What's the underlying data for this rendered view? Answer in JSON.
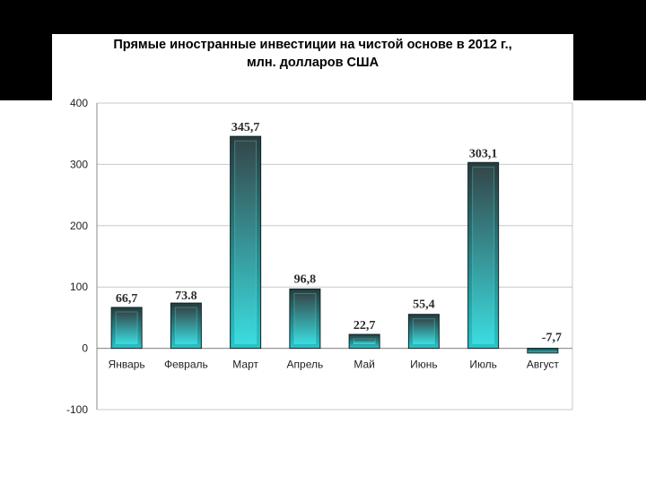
{
  "chart_data": {
    "type": "bar",
    "title": "Прямые иностранные инвестиции на чистой основе в 2012 г.,",
    "subtitle": "млн. долларов США",
    "xlabel": "",
    "ylabel": "",
    "ylim": [
      -100,
      400
    ],
    "yticks": [
      "400",
      "300",
      "200",
      "100",
      "0",
      "-100"
    ],
    "ytick_values": [
      400,
      300,
      200,
      100,
      0,
      -100
    ],
    "grid": true,
    "categories": [
      "Январь",
      "Февраль",
      "Март",
      "Апрель",
      "Май",
      "Июнь",
      "Июль",
      "Август"
    ],
    "values": [
      66.7,
      73.8,
      345.7,
      96.8,
      22.7,
      55.4,
      303.1,
      -7.7
    ],
    "data_labels": [
      "66,7",
      "73.8",
      "345,7",
      "96,8",
      "22,7",
      "55,4",
      "303,1",
      "-7,7"
    ],
    "colors": {
      "bar_top": "#2a3a3c",
      "bar_bottom": "#27c6c9",
      "bar_edge": "#0f2426",
      "grid": "#c8c8c8",
      "axis": "#888888"
    }
  }
}
